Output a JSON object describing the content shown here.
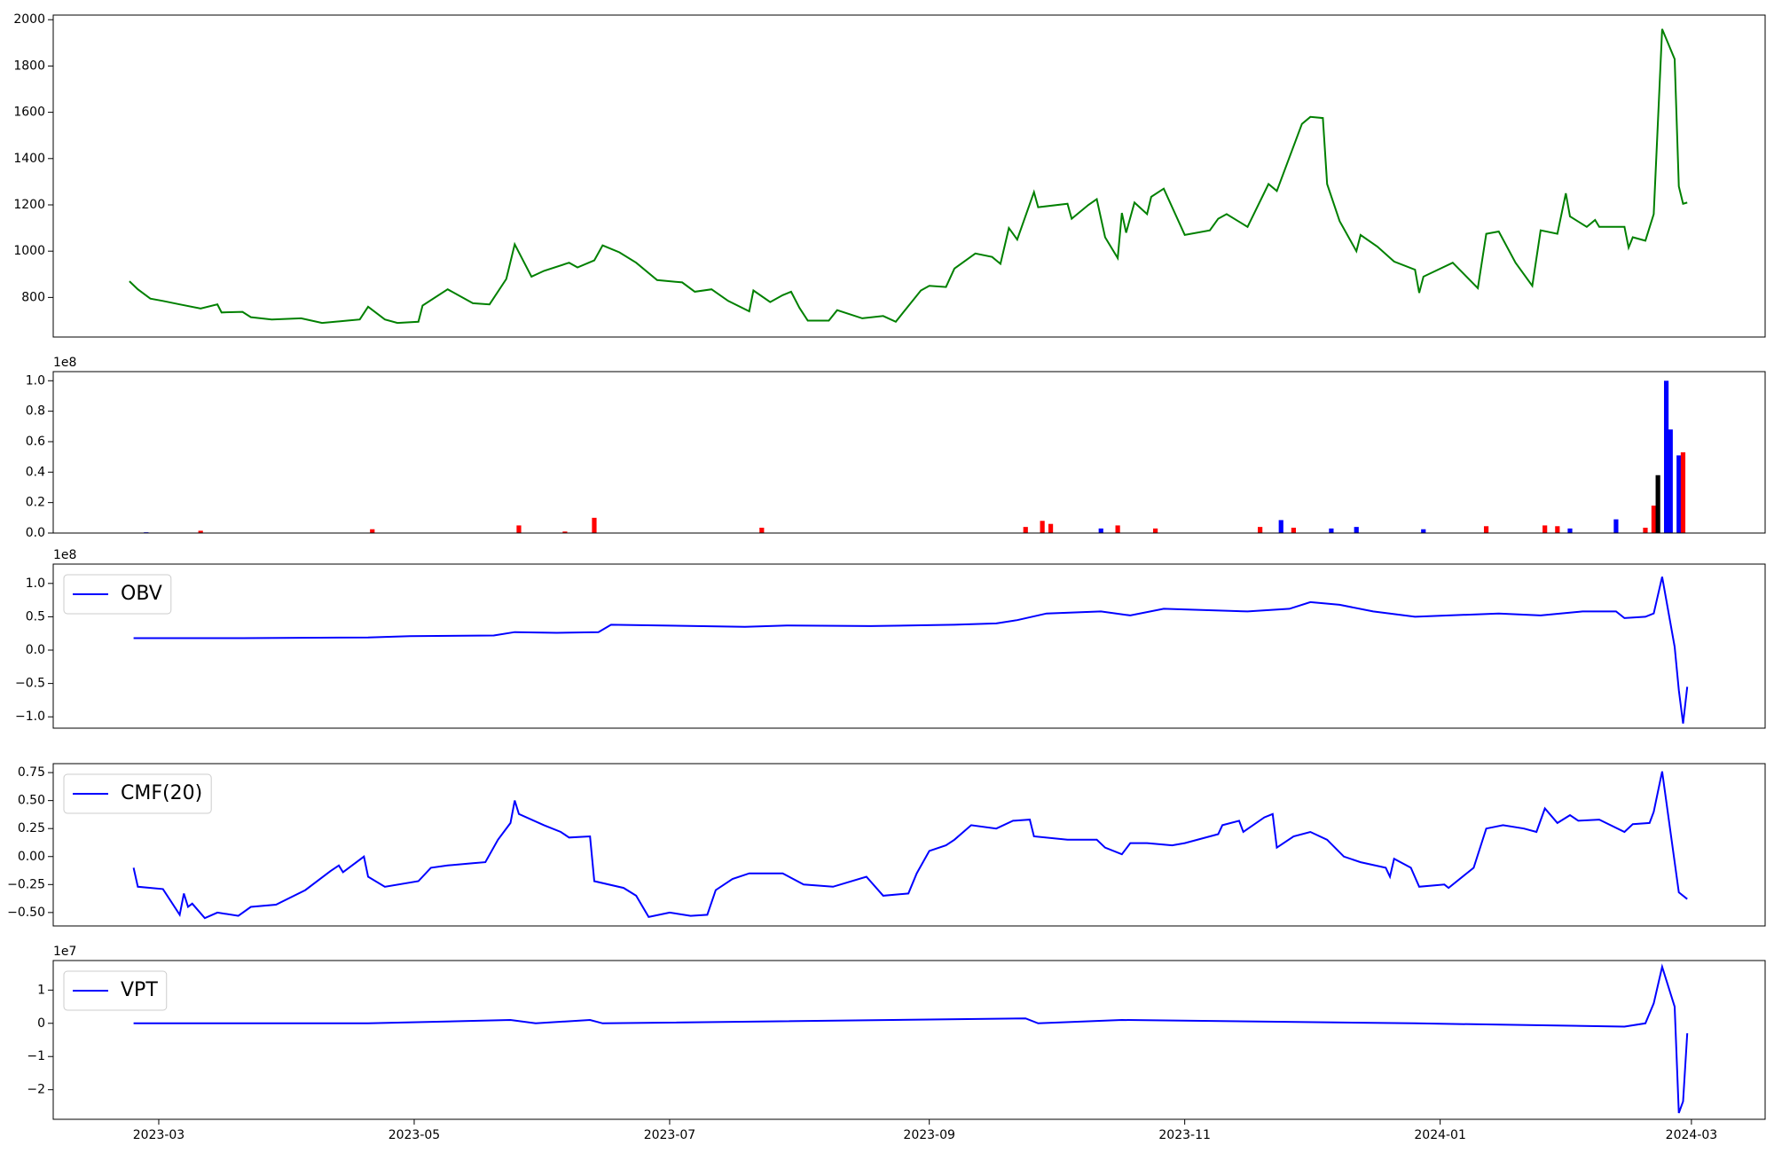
{
  "chart_data": [
    {
      "type": "line",
      "color": "#008000",
      "x": [
        -7,
        -5,
        -2,
        1,
        5,
        10,
        14,
        15,
        20,
        22,
        27,
        34,
        39,
        45,
        48,
        50,
        54,
        57,
        62,
        63,
        69,
        75,
        79,
        83,
        85,
        89,
        92,
        98,
        100,
        104,
        106,
        110,
        114,
        119,
        125,
        128,
        132,
        136,
        141,
        142,
        146,
        149,
        151,
        153,
        155,
        160,
        162,
        168,
        173,
        176,
        178,
        182,
        184,
        188,
        190,
        195,
        199,
        201,
        203,
        205,
        209,
        210,
        217,
        218,
        222,
        224,
        226,
        229,
        230,
        231,
        233,
        236,
        237,
        240,
        245,
        251,
        253,
        255,
        260,
        265,
        267,
        273,
        275,
        278,
        279,
        282,
        286,
        287,
        291,
        295,
        300,
        301,
        302,
        309,
        315,
        317,
        320,
        324,
        328,
        330,
        334,
        336,
        337,
        341,
        343,
        344,
        350,
        351,
        352,
        355,
        357,
        359,
        362,
        363,
        364,
        365
      ],
      "values": [
        870,
        835,
        795,
        785,
        770,
        752,
        770,
        735,
        738,
        715,
        705,
        710,
        690,
        700,
        705,
        760,
        705,
        690,
        695,
        765,
        835,
        775,
        770,
        880,
        1030,
        890,
        915,
        950,
        930,
        960,
        1025,
        995,
        950,
        875,
        865,
        825,
        835,
        785,
        740,
        830,
        780,
        810,
        825,
        755,
        700,
        700,
        745,
        710,
        720,
        695,
        740,
        830,
        850,
        845,
        925,
        990,
        975,
        945,
        1100,
        1050,
        1255,
        1190,
        1205,
        1140,
        1200,
        1225,
        1060,
        970,
        1165,
        1080,
        1210,
        1160,
        1235,
        1270,
        1070,
        1090,
        1140,
        1160,
        1105,
        1290,
        1260,
        1550,
        1580,
        1575,
        1290,
        1130,
        1000,
        1070,
        1020,
        955,
        920,
        820,
        890,
        950,
        840,
        1075,
        1085,
        950,
        850,
        1090,
        1075,
        1250,
        1150,
        1105,
        1135,
        1105,
        1105,
        1015,
        1060,
        1045,
        1160,
        1960,
        1830,
        1280,
        1205,
        1210
      ],
      "xlim": [
        -25.2,
        383.6
      ],
      "ylim": [
        629,
        2020
      ],
      "yticks": [
        800,
        1000,
        1200,
        1400,
        1600,
        1800,
        2000
      ]
    },
    {
      "type": "bar",
      "offset_text": "1e8",
      "x": [
        -3,
        10,
        51,
        86,
        97,
        104,
        144,
        207,
        211,
        213,
        225,
        229,
        238,
        263,
        268,
        271,
        280,
        286,
        302,
        317,
        331,
        334,
        337,
        348,
        355,
        357,
        358,
        360,
        361,
        363,
        364
      ],
      "values": [
        0.005,
        0.015,
        0.025,
        0.05,
        0.01,
        0.1,
        0.035,
        0.04,
        0.08,
        0.06,
        0.03,
        0.05,
        0.03,
        0.04,
        0.085,
        0.035,
        0.03,
        0.04,
        0.025,
        0.045,
        0.05,
        0.045,
        0.03,
        0.09,
        0.035,
        0.18,
        0.38,
        1.0,
        0.68,
        0.51,
        0.53
      ],
      "colors": [
        "#0000ff",
        "#ff0000",
        "#ff0000",
        "#ff0000",
        "#ff0000",
        "#ff0000",
        "#ff0000",
        "#ff0000",
        "#ff0000",
        "#ff0000",
        "#0000ff",
        "#ff0000",
        "#ff0000",
        "#ff0000",
        "#0000ff",
        "#ff0000",
        "#0000ff",
        "#0000ff",
        "#0000ff",
        "#ff0000",
        "#ff0000",
        "#ff0000",
        "#0000ff",
        "#0000ff",
        "#ff0000",
        "#ff0000",
        "#000000",
        "#0000ff",
        "#0000ff",
        "#0000ff",
        "#ff0000"
      ],
      "xlim": [
        -25.2,
        383.6
      ],
      "ylim": [
        0,
        1.06
      ],
      "yticks": [
        {
          "value": 0,
          "label": "0.0"
        },
        {
          "value": 0.2,
          "label": "0.2"
        },
        {
          "value": 0.4,
          "label": "0.4"
        },
        {
          "value": 0.6,
          "label": "0.6"
        },
        {
          "value": 0.8,
          "label": "0.8"
        },
        {
          "value": 1,
          "label": "1.0"
        }
      ]
    },
    {
      "type": "line",
      "offset_text": "1e8",
      "x": [
        -6,
        20,
        50,
        60,
        80,
        85,
        95,
        105,
        108,
        140,
        150,
        170,
        190,
        200,
        205,
        212,
        225,
        232,
        240,
        260,
        270,
        275,
        282,
        290,
        300,
        320,
        330,
        340,
        348,
        350,
        355,
        357,
        359,
        362,
        363,
        364,
        365
      ],
      "series": [
        {
          "name": "OBV",
          "color": "#0000ff",
          "values": [
            0.18,
            0.18,
            0.19,
            0.21,
            0.22,
            0.27,
            0.26,
            0.27,
            0.38,
            0.35,
            0.37,
            0.36,
            0.38,
            0.4,
            0.45,
            0.55,
            0.58,
            0.52,
            0.62,
            0.58,
            0.62,
            0.72,
            0.68,
            0.58,
            0.5,
            0.55,
            0.52,
            0.58,
            0.58,
            0.48,
            0.5,
            0.55,
            1.1,
            0.05,
            -0.6,
            -1.1,
            -0.55
          ]
        }
      ],
      "xlim": [
        -25.2,
        383.6
      ],
      "ylim": [
        -1.17,
        1.29
      ],
      "yticks": [
        {
          "value": -1,
          "label": "−1.0"
        },
        {
          "value": -0.5,
          "label": "−0.5"
        },
        {
          "value": 0,
          "label": "0.0"
        },
        {
          "value": 0.5,
          "label": "0.5"
        },
        {
          "value": 1,
          "label": "1.0"
        }
      ]
    },
    {
      "type": "line",
      "x": [
        -6,
        -5,
        1,
        5,
        6,
        7,
        8,
        11,
        14,
        19,
        22,
        28,
        35,
        41,
        43,
        44,
        49,
        50,
        54,
        62,
        65,
        69,
        75,
        78,
        81,
        84,
        85,
        86,
        92,
        96,
        98,
        103,
        104,
        111,
        114,
        117,
        122,
        127,
        131,
        133,
        137,
        141,
        149,
        154,
        161,
        169,
        173,
        179,
        181,
        184,
        188,
        190,
        194,
        200,
        204,
        208,
        209,
        217,
        224,
        226,
        230,
        232,
        236,
        242,
        245,
        253,
        254,
        258,
        259,
        264,
        266,
        267,
        271,
        275,
        279,
        283,
        287,
        293,
        294,
        295,
        299,
        301,
        307,
        308,
        314,
        317,
        321,
        326,
        329,
        331,
        334,
        337,
        339,
        344,
        350,
        352,
        356,
        357,
        359,
        363,
        365
      ],
      "series": [
        {
          "name": "CMF(20)",
          "color": "#0000ff",
          "values": [
            -0.1,
            -0.27,
            -0.29,
            -0.52,
            -0.33,
            -0.45,
            -0.42,
            -0.55,
            -0.5,
            -0.53,
            -0.45,
            -0.43,
            -0.3,
            -0.13,
            -0.08,
            -0.14,
            0.0,
            -0.18,
            -0.27,
            -0.22,
            -0.1,
            -0.08,
            -0.06,
            -0.05,
            0.15,
            0.3,
            0.5,
            0.38,
            0.28,
            0.22,
            0.17,
            0.18,
            -0.22,
            -0.28,
            -0.35,
            -0.54,
            -0.5,
            -0.53,
            -0.52,
            -0.3,
            -0.2,
            -0.15,
            -0.15,
            -0.25,
            -0.27,
            -0.18,
            -0.35,
            -0.33,
            -0.15,
            0.05,
            0.1,
            0.15,
            0.28,
            0.25,
            0.32,
            0.33,
            0.18,
            0.15,
            0.15,
            0.08,
            0.02,
            0.12,
            0.12,
            0.1,
            0.12,
            0.2,
            0.28,
            0.32,
            0.22,
            0.35,
            0.38,
            0.08,
            0.18,
            0.22,
            0.15,
            0.0,
            -0.05,
            -0.1,
            -0.18,
            -0.02,
            -0.1,
            -0.27,
            -0.25,
            -0.28,
            -0.1,
            0.25,
            0.28,
            0.25,
            0.22,
            0.43,
            0.3,
            0.37,
            0.32,
            0.33,
            0.22,
            0.29,
            0.3,
            0.4,
            0.76,
            -0.32,
            -0.38
          ]
        }
      ],
      "xlim": [
        -25.2,
        383.6
      ],
      "ylim": [
        -0.62,
        0.83
      ],
      "yticks": [
        {
          "value": -0.5,
          "label": "−0.50"
        },
        {
          "value": -0.25,
          "label": "−0.25"
        },
        {
          "value": 0,
          "label": "0.00"
        },
        {
          "value": 0.25,
          "label": "0.25"
        },
        {
          "value": 0.5,
          "label": "0.50"
        },
        {
          "value": 0.75,
          "label": "0.75"
        }
      ]
    },
    {
      "type": "line",
      "offset_text": "1e7",
      "x": [
        -6,
        50,
        84,
        90,
        103,
        106,
        207,
        210,
        230,
        300,
        350,
        355,
        357,
        359,
        362,
        363,
        364,
        365
      ],
      "series": [
        {
          "name": "VPT",
          "color": "#0000ff",
          "values": [
            0,
            0,
            0.1,
            0,
            0.1,
            0,
            0.15,
            0,
            0.1,
            0,
            -0.1,
            0,
            0.6,
            1.7,
            0.5,
            -2.7,
            -2.35,
            -0.3
          ]
        }
      ],
      "xlim": [
        -25.2,
        383.6
      ],
      "ylim": [
        -2.89,
        1.89
      ],
      "yticks": [
        {
          "value": -2,
          "label": "−2"
        },
        {
          "value": -1,
          "label": "−1"
        },
        0,
        1
      ],
      "xticks": [
        {
          "value": 0,
          "label": "2023-03"
        },
        {
          "value": 61,
          "label": "2023-05"
        },
        {
          "value": 122,
          "label": "2023-07"
        },
        {
          "value": 184,
          "label": "2023-09"
        },
        {
          "value": 245,
          "label": "2023-11"
        },
        {
          "value": 306,
          "label": "2024-01"
        },
        {
          "value": 366,
          "label": "2024-03"
        }
      ]
    }
  ]
}
